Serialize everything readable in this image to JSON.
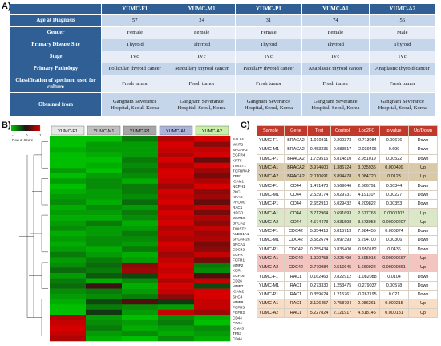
{
  "panel_labels": {
    "a": "A)",
    "b": "B)",
    "c": "C)"
  },
  "table_a": {
    "columns": [
      "YUMC-F1",
      "YUMC-M1",
      "YUMC-P1",
      "YUMC-A1",
      "YUMC-A2"
    ],
    "rows": [
      {
        "label": "Age at Diagnosis",
        "values": [
          "57",
          "24",
          "31",
          "74",
          "56"
        ]
      },
      {
        "label": "Gender",
        "values": [
          "Female",
          "Female",
          "Female",
          "Female",
          "Male"
        ]
      },
      {
        "label": "Primary Disease Site",
        "values": [
          "Thyroid",
          "Thyroid",
          "Thyroid",
          "Thyroid",
          "Thyroid"
        ]
      },
      {
        "label": "Stage",
        "values": [
          "IVc",
          "IVc",
          "IVc",
          "IVc",
          "IVc"
        ]
      },
      {
        "label": "Primary Pathology",
        "values": [
          "Follicular thyroid cancer",
          "Medullary thyroid cancer",
          "Papillary thyroid cancer",
          "Anaplastic thyroid cancer",
          "Anaplastic thyroid cancer"
        ]
      },
      {
        "label": "Classification of specimen used for culture",
        "values": [
          "Fresh tumor",
          "Fresh tumor",
          "Fresh tumor",
          "Fresh tumor",
          "Fresh tumor"
        ]
      },
      {
        "label": "Obtained from",
        "values": [
          "Gangnam Severance Hospital, Seoul, Korea",
          "Gangnam Severance Hospital, Seoul, Korea",
          "Gangnam Severance Hospital, Seoul, Korea",
          "Gangnam Severance Hospital, Seoul, Korea",
          "Gangnam Severance Hospital, Seoul, Korea"
        ]
      }
    ]
  },
  "heatmap": {
    "samples": [
      "YUMC-F1",
      "YUMC-M1",
      "YUMC-P1",
      "YUMC-A1",
      "YUMC-A2"
    ],
    "sample_colors": [
      "#e6e6e6",
      "#bfbfbf",
      "#a6a6a6",
      "#aab4d8",
      "#c8efa8"
    ],
    "legend_ticks": [
      "-1",
      "0",
      "1"
    ],
    "legend_label": "Row Z-Score",
    "genes": [
      "SALL4",
      "WNT2",
      "SRGAP2",
      "EGFR4",
      "KRT5",
      "TWIST1",
      "TGFBRAP",
      "ZEB1",
      "ICAM1",
      "NCPH1",
      "PKC",
      "KRAS",
      "PROM1",
      "RAC1",
      "HPGD",
      "WNT16",
      "BRCA2",
      "TWIST2",
      "ALDH1A1",
      "SRGAP2C",
      "BRCA1",
      "CDC42",
      "EGFR",
      "FGFR1",
      "MMP2",
      "KDR",
      "EGFL6",
      "CD26",
      "MMP7",
      "ICAM2",
      "SHC4",
      "MMP9",
      "FGFR3",
      "FGFR2",
      "CD44",
      "CD24",
      "ICMA3",
      "TP53",
      "CD44"
    ],
    "values": [
      [
        -1,
        -1,
        -0.6,
        0.8,
        1
      ],
      [
        -1,
        -0.8,
        -0.8,
        1,
        0.6
      ],
      [
        -0.9,
        -0.8,
        -0.8,
        0.9,
        0.9
      ],
      [
        -1,
        -0.9,
        -0.8,
        0.8,
        1
      ],
      [
        -1,
        -1,
        -0.6,
        1,
        0.4
      ],
      [
        -1,
        -0.9,
        -0.7,
        0.8,
        1
      ],
      [
        -0.8,
        -1,
        -0.6,
        1,
        0.7
      ],
      [
        -1,
        -0.8,
        -0.7,
        1,
        0.5
      ],
      [
        -0.8,
        -0.7,
        -0.9,
        0.9,
        0.8
      ],
      [
        -1,
        -0.7,
        -0.6,
        0.7,
        1
      ],
      [
        -0.9,
        -0.8,
        -0.6,
        1,
        0.6
      ],
      [
        -0.8,
        -0.8,
        -0.7,
        0.9,
        0.7
      ],
      [
        -0.7,
        -0.9,
        -0.5,
        1,
        0.4
      ],
      [
        -0.9,
        -0.7,
        -0.8,
        0.8,
        0.9
      ],
      [
        -0.8,
        -0.8,
        -0.6,
        1,
        0.5
      ],
      [
        -0.9,
        -0.9,
        -0.7,
        0.9,
        0.8
      ],
      [
        -0.8,
        -0.6,
        -0.9,
        1,
        0.6
      ],
      [
        -0.7,
        -0.8,
        -0.8,
        0.8,
        0.9
      ],
      [
        -0.9,
        -0.8,
        -0.6,
        0.9,
        0.7
      ],
      [
        -0.8,
        -0.7,
        -0.7,
        0.8,
        0.8
      ],
      [
        -0.9,
        -0.7,
        -0.8,
        1,
        0.5
      ],
      [
        -0.8,
        -0.9,
        -0.6,
        0.9,
        0.6
      ],
      [
        -0.6,
        -0.8,
        -0.9,
        0.7,
        0.9
      ],
      [
        -0.8,
        -0.6,
        -0.8,
        0.9,
        0.5
      ],
      [
        -0.7,
        -0.5,
        0.6,
        1,
        -0.6
      ],
      [
        -0.5,
        -0.6,
        0.7,
        0.9,
        -0.7
      ],
      [
        -0.8,
        -0.4,
        -0.3,
        1,
        0.3
      ],
      [
        -0.6,
        -0.9,
        -0.7,
        0.8,
        0.9
      ],
      [
        -0.5,
        0.2,
        -0.9,
        1,
        -0.3
      ],
      [
        -0.7,
        -0.6,
        -0.8,
        0.9,
        1
      ],
      [
        -0.8,
        -0.7,
        -0.6,
        0.6,
        1
      ],
      [
        -0.9,
        -0.3,
        0.3,
        -0.2,
        0.9
      ],
      [
        -1,
        -0.6,
        -0.7,
        -0.8,
        0.9
      ],
      [
        -1,
        -0.2,
        -0.8,
        0.9,
        0.7
      ],
      [
        0.8,
        -0.8,
        -1,
        -0.7,
        -0.9
      ],
      [
        0.9,
        -0.7,
        -0.8,
        -0.6,
        -1
      ],
      [
        1,
        -0.6,
        -0.9,
        -0.8,
        -0.7
      ],
      [
        0.9,
        -0.8,
        -0.7,
        -0.9,
        -0.8
      ],
      [
        0.8,
        -0.9,
        -1,
        -0.7,
        -0.9
      ]
    ]
  },
  "table_c": {
    "headers": [
      "Sample",
      "Gene",
      "Test",
      "Control",
      "Log2FC",
      "p value",
      "Up/Down"
    ],
    "rows": [
      {
        "cells": [
          "YUMC-F1",
          "BRACA2",
          "1.010811",
          "0.200373",
          "-0.713084",
          "0.00676",
          "Down"
        ],
        "style": "white"
      },
      {
        "cells": [
          "YUMC-M1",
          "BRACA2",
          "0.453235",
          "0.083517",
          "-2.039406",
          "0.699",
          "Down"
        ],
        "style": "white"
      },
      {
        "cells": [
          "YUMC-P1",
          "BRACA2",
          "1.739516",
          "3.814810",
          "2.951019",
          "0.00522",
          "Down"
        ],
        "style": "white"
      },
      {
        "cells": [
          "YUMC-A1",
          "BRACA2",
          "3.974600",
          "1.386724",
          "3.035936",
          "0.000499",
          "Up"
        ],
        "style": "tan"
      },
      {
        "cells": [
          "YUMC-A2",
          "BRACA2",
          "2.010691",
          "3.894478",
          "3.084720",
          "0.0123",
          "Up"
        ],
        "style": "tan"
      },
      {
        "cells": [
          "YUMC-F1",
          "CD44",
          "1.471473",
          "3.569646",
          "2.666791",
          "0.00344",
          "Down"
        ],
        "style": "white"
      },
      {
        "cells": [
          "YUMC-M1",
          "CD44",
          "2.539174",
          "5.029731",
          "4.191107",
          "0.00227",
          "Down"
        ],
        "style": "white"
      },
      {
        "cells": [
          "YUMC-P1",
          "CD44",
          "2.652910",
          "5.029432",
          "4.209822",
          "0.00353",
          "Down"
        ],
        "style": "white"
      },
      {
        "cells": [
          "YUMC-A1",
          "CD44",
          "3.712964",
          "0.691693",
          "2.677768",
          "0.0000102",
          "Up"
        ],
        "style": "green"
      },
      {
        "cells": [
          "YUMC-A2",
          "CD44",
          "4.574473",
          "0.931598",
          "3.573053",
          "0.00000207",
          "Up"
        ],
        "style": "green"
      },
      {
        "cells": [
          "YUMC-F1",
          "CDC42",
          "5.854413",
          "8.815713",
          "7.984455",
          "0.000874",
          "Down"
        ],
        "style": "white"
      },
      {
        "cells": [
          "YUMC-M1",
          "CDC42",
          "3.582674",
          "6.097393",
          "5.294700",
          "0.00306",
          "Down"
        ],
        "style": "white"
      },
      {
        "cells": [
          "YUMC-P1",
          "CDC42",
          "0.255434",
          "0.835400",
          "-0.950182",
          "0.0436",
          "Down"
        ],
        "style": "white"
      },
      {
        "cells": [
          "YUMC-A1",
          "CDC42",
          "1.920758",
          "0.225490",
          "0.595913",
          "0.00000667",
          "Up"
        ],
        "style": "pink"
      },
      {
        "cells": [
          "YUMC-A2",
          "CDC42",
          "2.770984",
          "0.516645",
          "1.660922",
          "0.00000861",
          "Up"
        ],
        "style": "pink"
      },
      {
        "cells": [
          "YUMC-F1",
          "RAC1",
          "0.162463",
          "0.822912",
          "-1.082088",
          "0.0104",
          "Down"
        ],
        "style": "white"
      },
      {
        "cells": [
          "YUMC-M1",
          "RAC1",
          "0.273330",
          "1.253475",
          "-0.279037",
          "0.00578",
          "Down"
        ],
        "style": "white"
      },
      {
        "cells": [
          "YUMC-P1",
          "RAC1",
          "0.359624",
          "1.215761",
          "-0.267195",
          "0.021",
          "Down"
        ],
        "style": "white"
      },
      {
        "cells": [
          "YUMC-A1",
          "RAC1",
          "3.126457",
          "0.758794",
          "2.086261",
          "0.000215",
          "Up"
        ],
        "style": "peach"
      },
      {
        "cells": [
          "YUMC-A2",
          "RAC1",
          "5.227824",
          "2.121917",
          "4.318145",
          "0.000181",
          "Up"
        ],
        "style": "peach"
      }
    ]
  }
}
